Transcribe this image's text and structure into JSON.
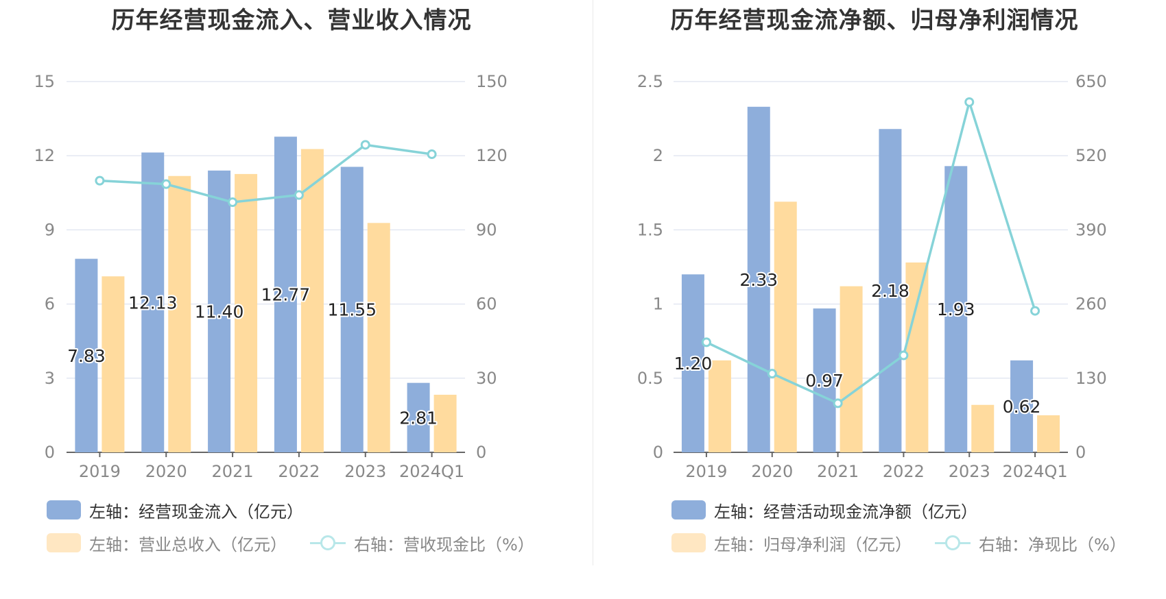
{
  "charts": [
    {
      "title": "历年经营现金流入、营业收入情况",
      "legend": {
        "bar1": "左轴：经营现金流入（亿元）",
        "bar2": "左轴：营业总收入（亿元）",
        "line": "右轴：营收现金比（%）"
      }
    },
    {
      "title": "历年经营现金流净额、归母净利润情况",
      "legend": {
        "bar1": "左轴：经营活动现金流净额（亿元）",
        "bar2": "左轴：归母净利润（亿元）",
        "line": "右轴：净现比（%）"
      }
    }
  ],
  "colors": {
    "bar1": "#8eaedb",
    "bar2": "#ffdb9e",
    "line": "#86d3d8",
    "grid": "#e3e7f2",
    "axis": "#666666",
    "tick": "#888888"
  },
  "chart_data": [
    {
      "type": "bar",
      "title": "历年经营现金流入、营业收入情况",
      "categories": [
        "2019",
        "2020",
        "2021",
        "2022",
        "2023",
        "2024Q1"
      ],
      "series": [
        {
          "name": "左轴：经营现金流入（亿元）",
          "axis": "left",
          "kind": "bar",
          "values": [
            7.83,
            12.13,
            11.4,
            12.77,
            11.55,
            2.81
          ],
          "labels": [
            "7.83",
            "12.13",
            "11.40",
            "12.77",
            "11.55",
            "2.81"
          ]
        },
        {
          "name": "左轴：营业总收入（亿元）",
          "axis": "left",
          "kind": "bar",
          "values": [
            7.12,
            11.18,
            11.26,
            12.27,
            9.28,
            2.33
          ]
        },
        {
          "name": "右轴：营收现金比（%）",
          "axis": "right",
          "kind": "line",
          "values": [
            109.9,
            108.5,
            101.2,
            104.1,
            124.4,
            120.6
          ]
        }
      ],
      "left_axis": {
        "min": 0,
        "max": 15,
        "ticks": [
          "0",
          "3",
          "6",
          "9",
          "12",
          "15"
        ]
      },
      "right_axis": {
        "min": 0,
        "max": 150,
        "ticks": [
          "0",
          "30",
          "60",
          "90",
          "120",
          "150"
        ]
      }
    },
    {
      "type": "bar",
      "title": "历年经营现金流净额、归母净利润情况",
      "categories": [
        "2019",
        "2020",
        "2021",
        "2022",
        "2023",
        "2024Q1"
      ],
      "series": [
        {
          "name": "左轴：经营活动现金流净额（亿元）",
          "axis": "left",
          "kind": "bar",
          "values": [
            1.2,
            2.33,
            0.97,
            2.18,
            1.93,
            0.62
          ],
          "labels": [
            "1.20",
            "2.33",
            "0.97",
            "2.18",
            "1.93",
            "0.62"
          ]
        },
        {
          "name": "左轴：归母净利润（亿元）",
          "axis": "left",
          "kind": "bar",
          "values": [
            0.62,
            1.69,
            1.12,
            1.28,
            0.32,
            0.25
          ]
        },
        {
          "name": "右轴：净现比（%）",
          "axis": "right",
          "kind": "line",
          "values": [
            193,
            138,
            86,
            170,
            614,
            248
          ]
        }
      ],
      "left_axis": {
        "min": 0,
        "max": 2.5,
        "ticks": [
          "0",
          "0.5",
          "1",
          "1.5",
          "2",
          "2.5"
        ]
      },
      "right_axis": {
        "min": 0,
        "max": 650,
        "ticks": [
          "0",
          "130",
          "260",
          "390",
          "520",
          "650"
        ]
      }
    }
  ]
}
